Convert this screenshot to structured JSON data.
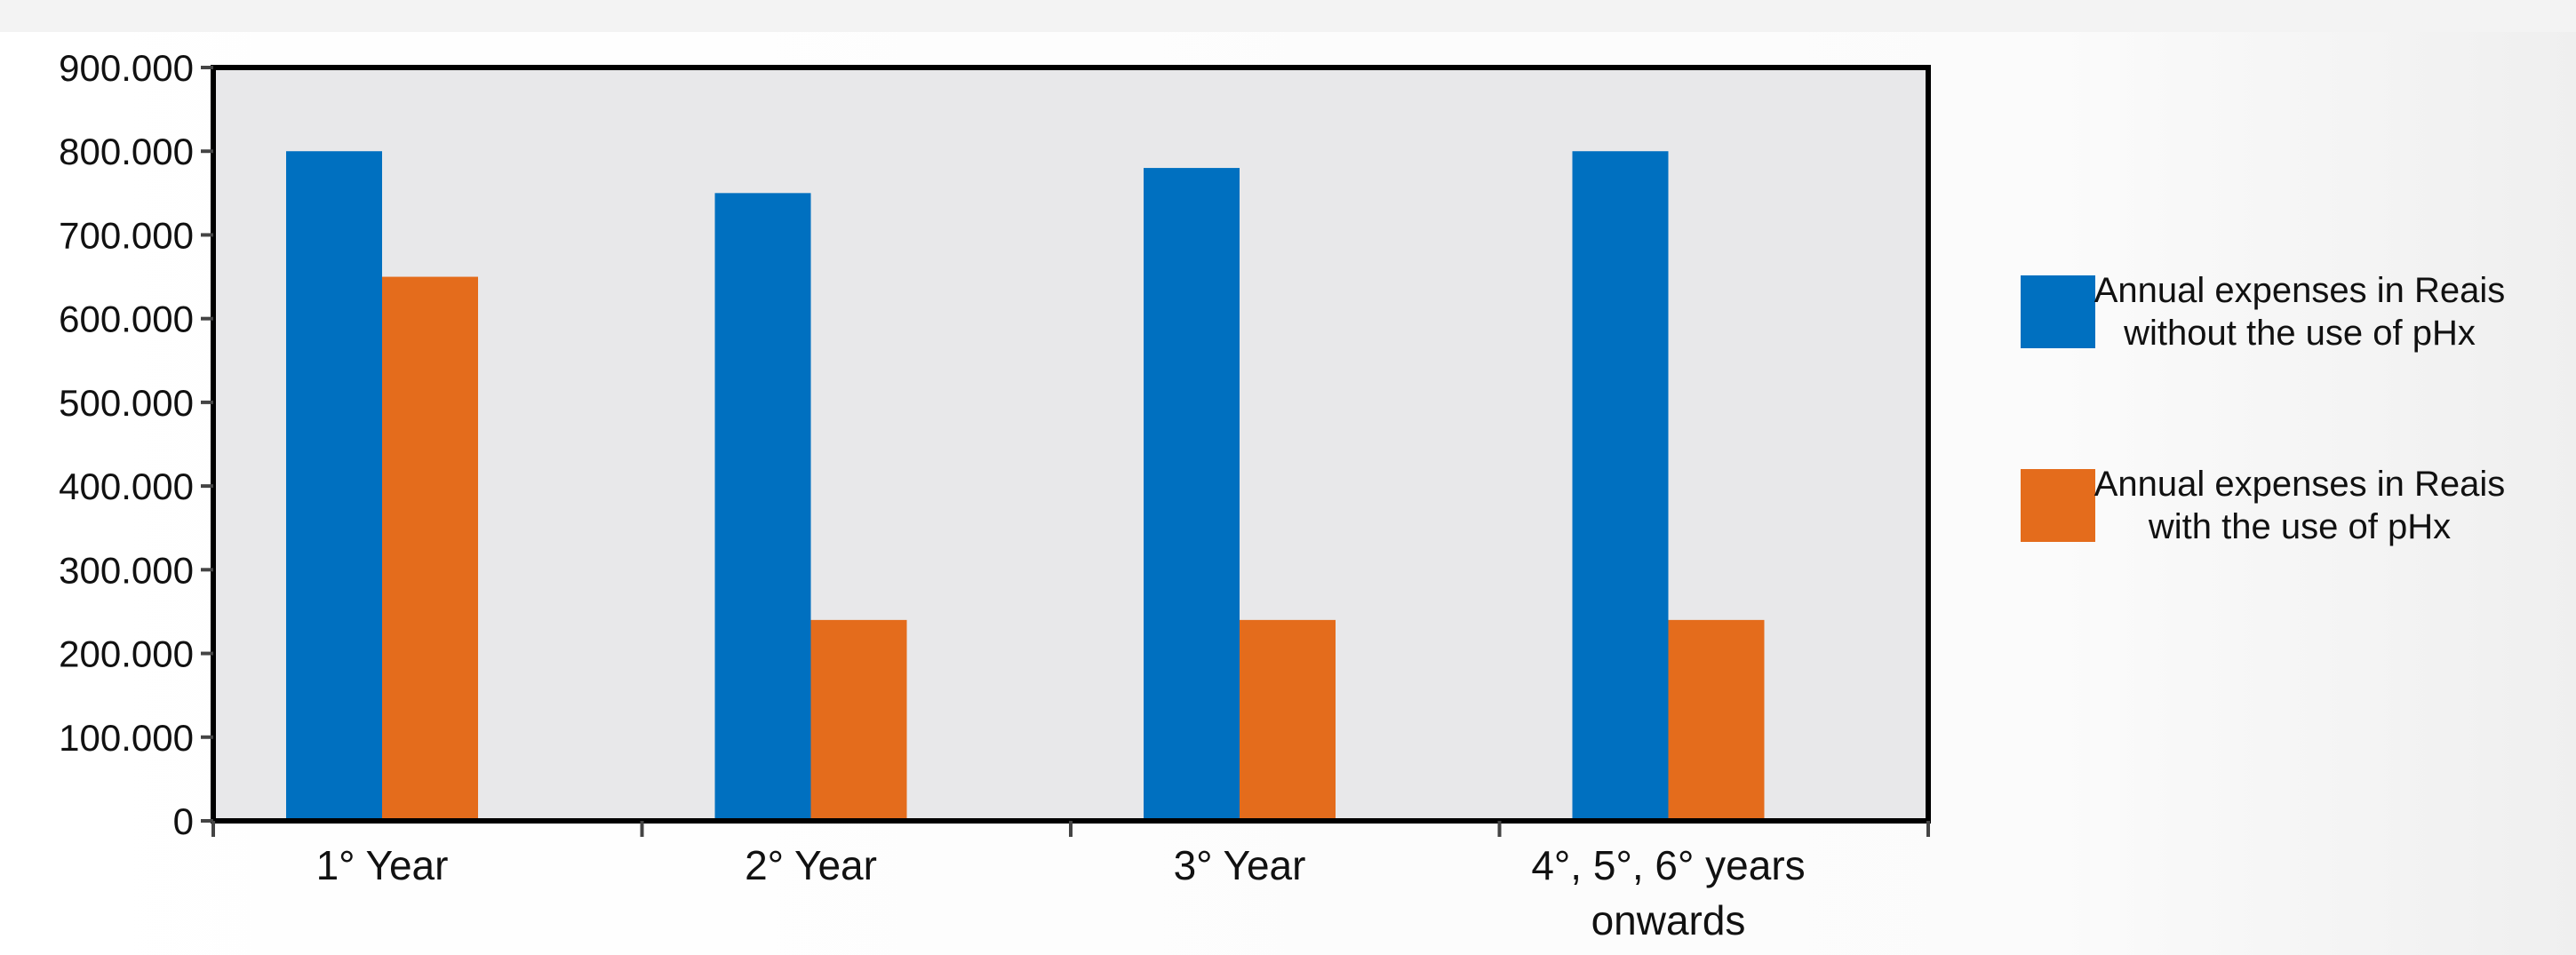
{
  "chart_data": {
    "type": "bar",
    "categories": [
      "1° Year",
      "2° Year",
      "3° Year",
      "4°, 5°, 6° years onwards"
    ],
    "series": [
      {
        "name": "Annual expenses in Reais without the use of pHx",
        "values": [
          800000,
          750000,
          780000,
          800000
        ],
        "color": "#0070c0"
      },
      {
        "name": "Annual expenses in Reais with the use of pHx",
        "values": [
          650000,
          240000,
          240000,
          240000
        ],
        "color": "#e46c1c"
      }
    ],
    "yticks": [
      "0",
      "100.000",
      "200.000",
      "300.000",
      "400.000",
      "500.000",
      "600.000",
      "700.000",
      "800.000",
      "900.000"
    ],
    "ylim": [
      0,
      900000
    ],
    "title": "",
    "xlabel": "",
    "ylabel": "",
    "grid": false,
    "legend_position": "right",
    "plot_background": "#e8e8ea"
  }
}
